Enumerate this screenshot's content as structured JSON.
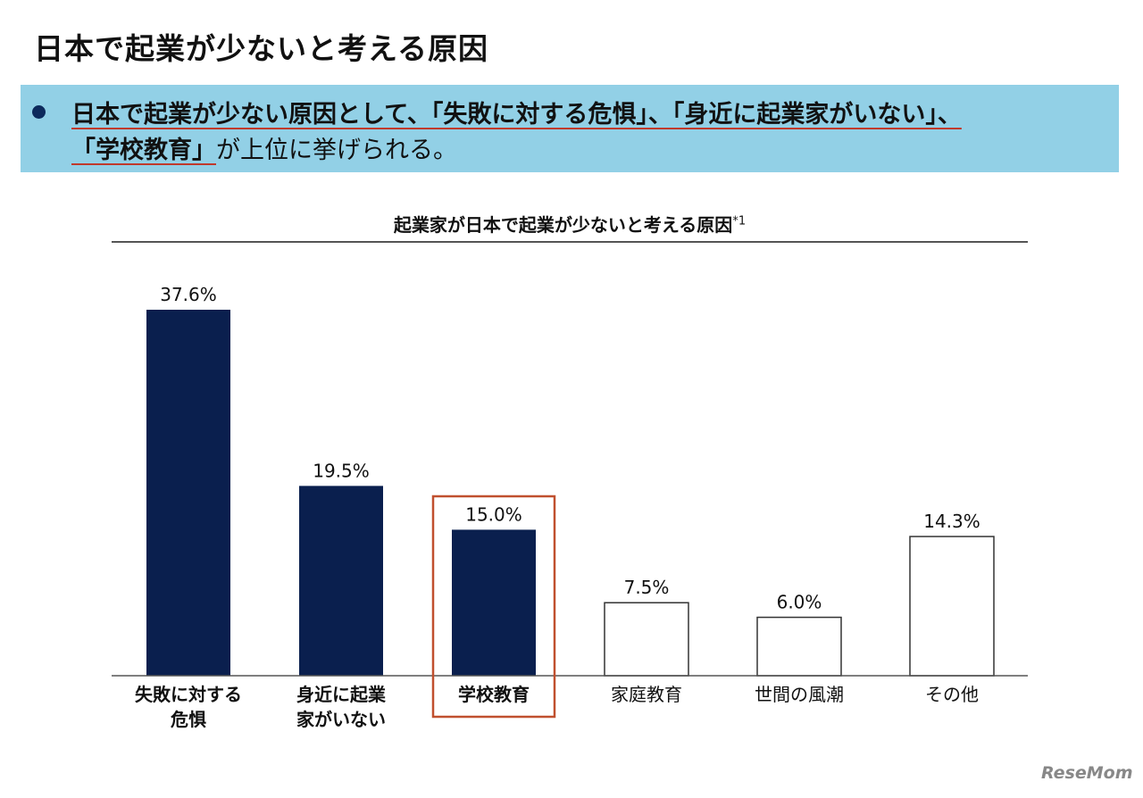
{
  "header": {
    "title": "日本で起業が少ないと考える原因"
  },
  "callout": {
    "line1": "日本で起業が少ない原因として、「失敗に対する危惧」、「身近に起業家がいない」、",
    "line2_emphasis": "「学校教育」",
    "line2_rest": "が上位に挙げられる。"
  },
  "chart_data": {
    "type": "bar",
    "title": "起業家が日本で起業が少ないと考える原因",
    "title_note": "*1",
    "categories": [
      [
        "失敗に対する",
        "危惧"
      ],
      [
        "身近に起業",
        "家がいない"
      ],
      [
        "学校教育"
      ],
      [
        "家庭教育"
      ],
      [
        "世間の風潮"
      ],
      [
        "その他"
      ]
    ],
    "values": [
      37.6,
      19.5,
      15.0,
      7.5,
      6.0,
      14.3
    ],
    "value_labels": [
      "37.6%",
      "19.5%",
      "15.0%",
      "7.5%",
      "6.0%",
      "14.3%"
    ],
    "filled": [
      true,
      true,
      true,
      false,
      false,
      false
    ],
    "bold_labels": [
      true,
      true,
      true,
      false,
      false,
      false
    ],
    "highlight_index": 2,
    "ylim": [
      0,
      40
    ],
    "grid": false,
    "colors": {
      "filled": "#0a1f4e",
      "outline": "#333333",
      "highlight_box": "#c0502f"
    }
  },
  "watermark": "ReseMom"
}
